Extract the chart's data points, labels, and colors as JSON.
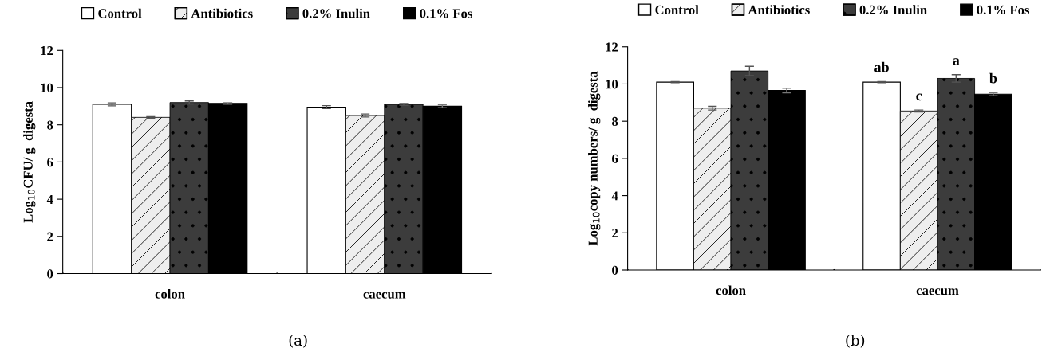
{
  "chart_data": [
    {
      "type": "bar",
      "ylabel": "Log$_{10}$CFU/ g  digesta",
      "categories": [
        "colon",
        "caecum"
      ],
      "ylim": [
        0,
        12
      ],
      "yticks": [
        0,
        2,
        4,
        6,
        8,
        10,
        12
      ],
      "legend": "top",
      "grid": false,
      "series": [
        {
          "name": "Control",
          "color": "#ffffff",
          "values": [
            9.1,
            8.95
          ],
          "errors": [
            0.08,
            0.08
          ]
        },
        {
          "name": "Antibiotics",
          "color": "#eeeeee",
          "values": [
            8.4,
            8.5
          ],
          "errors": [
            0.04,
            0.08
          ]
        },
        {
          "name": "0.2% Inulin",
          "color": "#3c3c3c",
          "values": [
            9.2,
            9.1
          ],
          "errors": [
            0.08,
            0.05
          ]
        },
        {
          "name": "0.1% Fos",
          "color": "#000000",
          "values": [
            9.15,
            9.0
          ],
          "errors": [
            0.04,
            0.08
          ]
        }
      ],
      "annotations": [
        "(a)"
      ]
    },
    {
      "type": "bar",
      "ylabel": "Log$_{10}$copy numbers/ g  digesta",
      "categories": [
        "colon",
        "caecum"
      ],
      "ylim": [
        0,
        12
      ],
      "yticks": [
        0,
        2,
        4,
        6,
        8,
        10,
        12
      ],
      "legend": "top",
      "grid": false,
      "series": [
        {
          "name": "Control",
          "color": "#ffffff",
          "values": [
            10.1,
            10.1
          ],
          "errors": [
            0.03,
            0.03
          ]
        },
        {
          "name": "Antibiotics",
          "color": "#eeeeee",
          "values": [
            8.7,
            8.55
          ],
          "errors": [
            0.1,
            0.05
          ]
        },
        {
          "name": "0.2% Inulin",
          "color": "#3c3c3c",
          "values": [
            10.7,
            10.3
          ],
          "errors": [
            0.25,
            0.2
          ]
        },
        {
          "name": "0.1% Fos",
          "color": "#000000",
          "values": [
            9.65,
            9.45
          ],
          "errors": [
            0.12,
            0.08
          ]
        }
      ],
      "annotations": [
        "ab",
        {
          "text": "c",
          "x": "caecum",
          "y": 8.55
        },
        {
          "text": "a",
          "x": "caecum",
          "y": 10.3
        },
        "b",
        "(b)"
      ]
    }
  ]
}
